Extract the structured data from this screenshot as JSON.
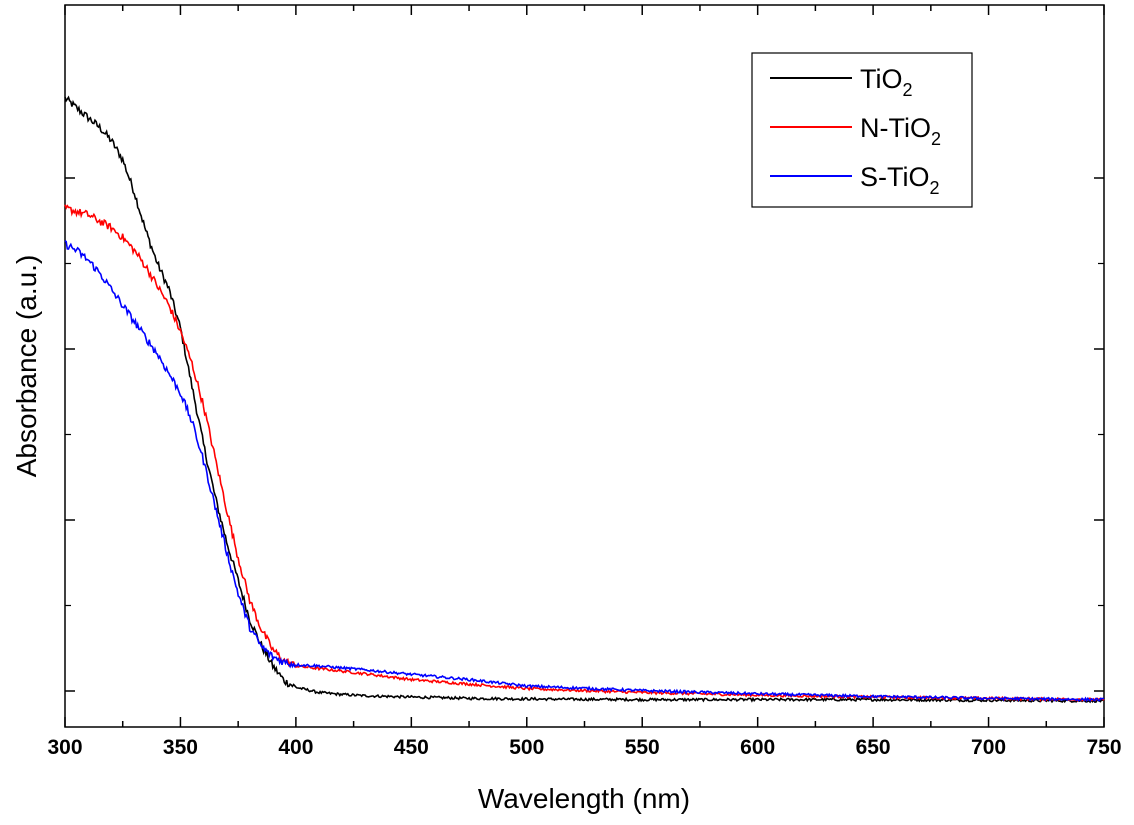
{
  "chart_data": {
    "type": "line",
    "title": "",
    "xlabel": "Wavelength (nm)",
    "ylabel": "Absorbance (a.u.)",
    "xlim": [
      300,
      750
    ],
    "ylim": [
      0,
      1.0
    ],
    "x_ticks": [
      "300",
      "350",
      "400",
      "450",
      "500",
      "550",
      "600",
      "650",
      "700",
      "750"
    ],
    "y_tick_labels_shown": false,
    "grid": false,
    "legend_placement": "top-right",
    "series": [
      {
        "name": "TiO2",
        "label_main": "TiO",
        "label_sub": "2",
        "color": "#000000",
        "x": [
          300,
          305,
          310,
          315,
          320,
          325,
          330,
          335,
          340,
          345,
          350,
          355,
          360,
          365,
          370,
          375,
          380,
          385,
          390,
          395,
          400,
          410,
          420,
          430,
          450,
          475,
          500,
          550,
          600,
          650,
          700,
          750
        ],
        "y": [
          0.945,
          0.93,
          0.915,
          0.9,
          0.88,
          0.85,
          0.8,
          0.74,
          0.69,
          0.65,
          0.59,
          0.5,
          0.41,
          0.33,
          0.26,
          0.2,
          0.14,
          0.1,
          0.068,
          0.045,
          0.035,
          0.027,
          0.024,
          0.022,
          0.02,
          0.018,
          0.017,
          0.016,
          0.016,
          0.016,
          0.015,
          0.014
        ]
      },
      {
        "name": "N-TiO2",
        "label_main": "N-TiO",
        "label_sub": "2",
        "color": "#ff0000",
        "x": [
          300,
          305,
          310,
          315,
          320,
          325,
          330,
          335,
          340,
          345,
          350,
          355,
          360,
          365,
          370,
          375,
          380,
          385,
          390,
          395,
          400,
          410,
          420,
          430,
          450,
          475,
          500,
          550,
          600,
          650,
          700,
          750
        ],
        "y": [
          0.775,
          0.77,
          0.765,
          0.755,
          0.745,
          0.73,
          0.71,
          0.685,
          0.655,
          0.625,
          0.585,
          0.535,
          0.47,
          0.39,
          0.31,
          0.235,
          0.17,
          0.125,
          0.093,
          0.076,
          0.068,
          0.064,
          0.06,
          0.056,
          0.047,
          0.04,
          0.033,
          0.027,
          0.023,
          0.02,
          0.018,
          0.016
        ]
      },
      {
        "name": "S-TiO2",
        "label_main": "S-TiO",
        "label_sub": "2",
        "color": "#0000ff",
        "x": [
          300,
          305,
          310,
          315,
          320,
          325,
          330,
          335,
          340,
          345,
          350,
          355,
          360,
          365,
          370,
          375,
          380,
          385,
          390,
          395,
          400,
          410,
          420,
          430,
          450,
          475,
          500,
          550,
          600,
          650,
          700,
          750
        ],
        "y": [
          0.72,
          0.71,
          0.695,
          0.675,
          0.65,
          0.625,
          0.6,
          0.575,
          0.55,
          0.52,
          0.49,
          0.445,
          0.385,
          0.315,
          0.245,
          0.18,
          0.128,
          0.098,
          0.082,
          0.074,
          0.07,
          0.068,
          0.065,
          0.062,
          0.055,
          0.047,
          0.037,
          0.03,
          0.025,
          0.021,
          0.018,
          0.016
        ]
      }
    ]
  }
}
